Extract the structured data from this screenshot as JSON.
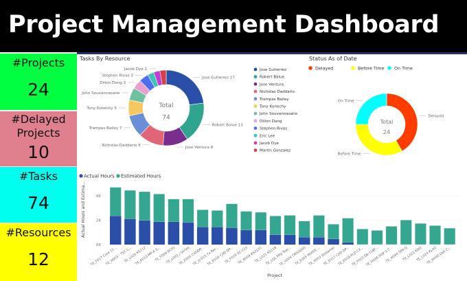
{
  "header": {
    "title": "Project Management Dashboard"
  },
  "kpis": [
    {
      "label": "#Projects",
      "value": "24",
      "color": "#00ff40"
    },
    {
      "label": "#Delayed Projects",
      "value": "10",
      "color": "#e0808e"
    },
    {
      "label": "#Tasks",
      "value": "74",
      "color": "#00ffee"
    },
    {
      "label": "#Resources",
      "value": "12",
      "color": "#ffff00"
    }
  ],
  "chart_data": [
    {
      "type": "pie",
      "title": "Tasks By Resource",
      "center_label": "Total",
      "center_value": "74",
      "legend_placement": "right",
      "slices": [
        {
          "name": "Jose Gutierrez",
          "value": 17,
          "label": "Jose Gutierrez 17",
          "color": "#2b4fa8"
        },
        {
          "name": "Robert Balue",
          "value": 13,
          "label": "Robert Balue 13",
          "color": "#2fa58f"
        },
        {
          "name": "Jose Ventura",
          "value": 8,
          "label": "Jose Ventura 8",
          "color": "#7b2d8e"
        },
        {
          "name": "Nicholas Daddario",
          "value": 8,
          "label": "Nicholas Daddario 8",
          "color": "#e06677"
        },
        {
          "name": "Trampas Bailey",
          "value": 7,
          "label": "Trampas Bailey 7",
          "color": "#6b8fd6"
        },
        {
          "name": "Tony Konechy",
          "value": 5,
          "label": "Tony Konechy 5",
          "color": "#f6c85f"
        },
        {
          "name": "John Souvannasane",
          "value": 4,
          "label": "John Souvannasane",
          "color": "#6fc2a0"
        },
        {
          "name": "Dillon Dang",
          "value": 3,
          "label": "Dillon Dang 3",
          "color": "#e8a0cf"
        },
        {
          "name": "Stephen Rivas",
          "value": 3,
          "label": "Stephen Rivas 3",
          "color": "#4d6ef0"
        },
        {
          "name": "Eric Lee",
          "value": 2,
          "label": "",
          "color": "#3cc4b4"
        },
        {
          "name": "Jacob Dye",
          "value": 2,
          "label": "Jacob Dye 2",
          "color": "#c03fd1"
        },
        {
          "name": "Martin Gonzalez",
          "value": 2,
          "label": "",
          "color": "#d6404d"
        }
      ]
    },
    {
      "type": "pie",
      "title": "Status As of Date",
      "center_label": "Total",
      "center_value": "24",
      "legend_placement": "top",
      "slices": [
        {
          "name": "Delayed",
          "value": 10,
          "label": "Delayed",
          "color": "#ff3d00"
        },
        {
          "name": "Before Time",
          "value": 8,
          "label": "Before Time",
          "color": "#ffff00"
        },
        {
          "name": "On Time",
          "value": 6,
          "label": "On Time",
          "color": "#00ffff"
        }
      ]
    },
    {
      "type": "bar",
      "stacked": true,
      "xlabel": "Project",
      "ylabel": "Actual Hours and Estima...",
      "ylim": [
        0,
        4800
      ],
      "yticks": [
        "0K",
        "2K",
        "4K"
      ],
      "ytick_values": [
        0,
        2000,
        4000
      ],
      "grid": true,
      "legend_placement": "top-left",
      "categories": [
        "TE_F017 Core 11...",
        "TE_H003 - TSC L...",
        "TE_L020 KS112",
        "TE_E013 MP-A S...",
        "TE_F009 DCIO",
        "TE_L001 / Series",
        "TE_E005 CXDDP...",
        "TE_Q-015 7x Rel...",
        "TE_E018 CXD DP...",
        "TE_F019 SC-223",
        "TE_R004 KS212C",
        "TE_L021 KS118",
        "TE_LQL Mfg Test...",
        "TE_U004 CMS5000",
        "TE_E005 MIXER ...",
        "TE_V003 Streamer",
        "TE_E017 CXD DP...",
        "TE_E018 PLD CX...",
        "TE_F022 SB-118F...",
        "TE_H036 POP S C...",
        "TE_H044 SPA Q",
        "TE_L022 KW2",
        "TE_L024 KLA2",
        "TE_H040 Dell C..."
      ],
      "series": [
        {
          "name": "Actual Hours",
          "color": "#2b4fa8",
          "values": [
            2350,
            2100,
            1970,
            1860,
            1860,
            1800,
            1430,
            1430,
            1370,
            1180,
            1180,
            800,
            800,
            600,
            600,
            450,
            170,
            0,
            0,
            0,
            0,
            0,
            0,
            0
          ]
        },
        {
          "name": "Estimated Hours",
          "color": "#35a68f",
          "values": [
            2350,
            2350,
            2370,
            2290,
            1880,
            1940,
            1430,
            1370,
            1980,
            1550,
            1470,
            1550,
            1600,
            1330,
            1800,
            1230,
            2000,
            1280,
            1170,
            1500,
            2020,
            1740,
            1560,
            1350
          ]
        }
      ]
    }
  ]
}
